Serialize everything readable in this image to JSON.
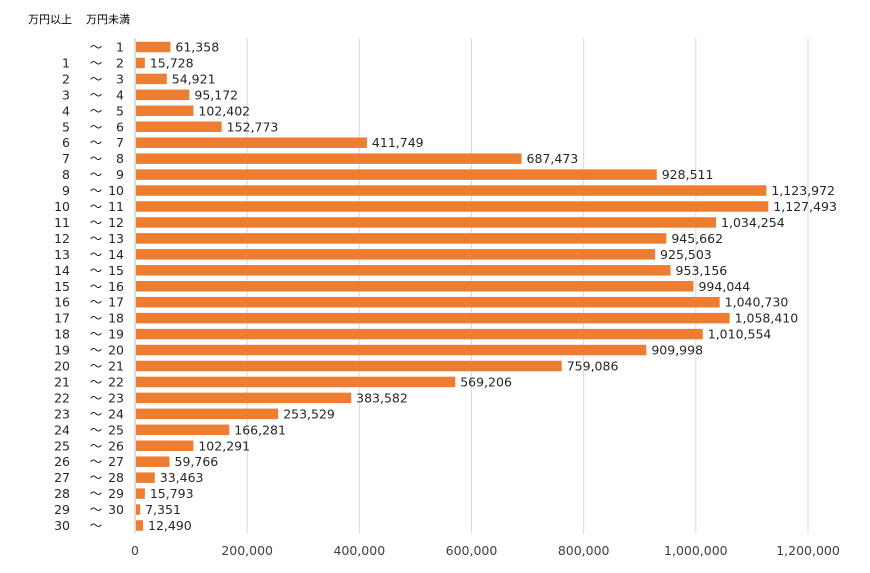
{
  "chart_data": {
    "type": "bar",
    "orientation": "horizontal",
    "header_left": "万円以上",
    "header_right": "万円未満",
    "range_separator": "～",
    "categories": [
      {
        "from": "",
        "to": "1"
      },
      {
        "from": "1",
        "to": "2"
      },
      {
        "from": "2",
        "to": "3"
      },
      {
        "from": "3",
        "to": "4"
      },
      {
        "from": "4",
        "to": "5"
      },
      {
        "from": "5",
        "to": "6"
      },
      {
        "from": "6",
        "to": "7"
      },
      {
        "from": "7",
        "to": "8"
      },
      {
        "from": "8",
        "to": "9"
      },
      {
        "from": "9",
        "to": "10"
      },
      {
        "from": "10",
        "to": "11"
      },
      {
        "from": "11",
        "to": "12"
      },
      {
        "from": "12",
        "to": "13"
      },
      {
        "from": "13",
        "to": "14"
      },
      {
        "from": "14",
        "to": "15"
      },
      {
        "from": "15",
        "to": "16"
      },
      {
        "from": "16",
        "to": "17"
      },
      {
        "from": "17",
        "to": "18"
      },
      {
        "from": "18",
        "to": "19"
      },
      {
        "from": "19",
        "to": "20"
      },
      {
        "from": "20",
        "to": "21"
      },
      {
        "from": "21",
        "to": "22"
      },
      {
        "from": "22",
        "to": "23"
      },
      {
        "from": "23",
        "to": "24"
      },
      {
        "from": "24",
        "to": "25"
      },
      {
        "from": "25",
        "to": "26"
      },
      {
        "from": "26",
        "to": "27"
      },
      {
        "from": "27",
        "to": "28"
      },
      {
        "from": "28",
        "to": "29"
      },
      {
        "from": "29",
        "to": "30"
      },
      {
        "from": "30",
        "to": ""
      }
    ],
    "values": [
      61358,
      15728,
      54921,
      95172,
      102402,
      152773,
      411749,
      687473,
      928511,
      1123972,
      1127493,
      1034254,
      945662,
      925503,
      953156,
      994044,
      1040730,
      1058410,
      1010554,
      909998,
      759086,
      569206,
      383582,
      253529,
      166281,
      102291,
      59766,
      33463,
      15793,
      7351,
      12490
    ],
    "value_labels": [
      "61,358",
      "15,728",
      "54,921",
      "95,172",
      "102,402",
      "152,773",
      "411,749",
      "687,473",
      "928,511",
      "1,123,972",
      "1,127,493",
      "1,034,254",
      "945,662",
      "925,503",
      "953,156",
      "994,044",
      "1,040,730",
      "1,058,410",
      "1,010,554",
      "909,998",
      "759,086",
      "569,206",
      "383,582",
      "253,529",
      "166,281",
      "102,291",
      "59,766",
      "33,463",
      "15,793",
      "7,351",
      "12,490"
    ],
    "xlim": [
      0,
      1200000
    ],
    "xticks": [
      0,
      200000,
      400000,
      600000,
      800000,
      1000000,
      1200000
    ],
    "xtick_labels": [
      "0",
      "200,000",
      "400,000",
      "600,000",
      "800,000",
      "1,000,000",
      "1,200,000"
    ],
    "grid": true,
    "bar_color": "#ED7D31",
    "grid_color": "#D9D9D9"
  }
}
